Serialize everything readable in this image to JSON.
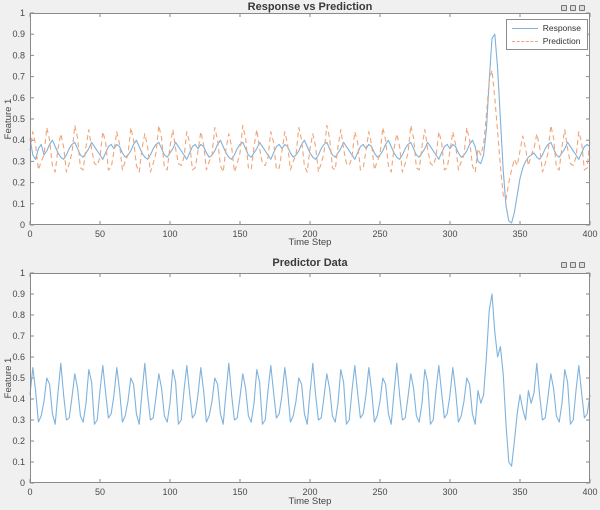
{
  "figure": {
    "background": "#f0f0f0",
    "plot_background": "#ffffff",
    "axis_color": "#8a8a8a",
    "tick_text_color": "#484848",
    "toolbar_icon": "ellipsis-icon"
  },
  "chart_data": [
    {
      "type": "line",
      "title": "Response vs Prediction",
      "xlabel": "Time Step",
      "ylabel": "Feature 1",
      "xlim": [
        0,
        400
      ],
      "ylim": [
        0,
        1
      ],
      "grid": false,
      "xticks": [
        0,
        50,
        100,
        150,
        200,
        250,
        300,
        350,
        400
      ],
      "xtick_labels": [
        "0",
        "50",
        "100",
        "150",
        "200",
        "250",
        "300",
        "350",
        "400"
      ],
      "yticks": [
        0,
        0.1,
        0.2,
        0.3,
        0.4,
        0.5,
        0.6,
        0.7,
        0.8,
        0.9,
        1
      ],
      "ytick_labels": [
        "0",
        "0.1",
        "0.2",
        "0.3",
        "0.4",
        "0.5",
        "0.6",
        "0.7",
        "0.8",
        "0.9",
        "1"
      ],
      "legend": {
        "position": "northeast",
        "entries": [
          "Response",
          "Prediction"
        ]
      },
      "x_start": 0,
      "x_step": 2,
      "series": [
        {
          "name": "Response",
          "color": "#7fb2dc",
          "style": "solid",
          "values": [
            0.41,
            0.33,
            0.31,
            0.36,
            0.38,
            0.33,
            0.35,
            0.38,
            0.4,
            0.37,
            0.34,
            0.32,
            0.31,
            0.33,
            0.36,
            0.38,
            0.39,
            0.36,
            0.33,
            0.32,
            0.34,
            0.36,
            0.39,
            0.37,
            0.35,
            0.33,
            0.31,
            0.34,
            0.37,
            0.38,
            0.36,
            0.38,
            0.37,
            0.34,
            0.32,
            0.33,
            0.35,
            0.38,
            0.4,
            0.37,
            0.34,
            0.32,
            0.31,
            0.33,
            0.36,
            0.38,
            0.39,
            0.36,
            0.33,
            0.32,
            0.34,
            0.36,
            0.39,
            0.37,
            0.35,
            0.33,
            0.31,
            0.34,
            0.37,
            0.38,
            0.36,
            0.38,
            0.37,
            0.34,
            0.32,
            0.33,
            0.35,
            0.38,
            0.4,
            0.37,
            0.34,
            0.32,
            0.31,
            0.33,
            0.36,
            0.38,
            0.39,
            0.36,
            0.33,
            0.32,
            0.34,
            0.36,
            0.39,
            0.37,
            0.35,
            0.33,
            0.31,
            0.34,
            0.37,
            0.38,
            0.36,
            0.38,
            0.37,
            0.34,
            0.32,
            0.33,
            0.35,
            0.38,
            0.4,
            0.37,
            0.34,
            0.32,
            0.31,
            0.33,
            0.36,
            0.38,
            0.39,
            0.36,
            0.33,
            0.32,
            0.34,
            0.36,
            0.39,
            0.37,
            0.35,
            0.33,
            0.31,
            0.34,
            0.37,
            0.38,
            0.36,
            0.38,
            0.37,
            0.34,
            0.32,
            0.33,
            0.35,
            0.38,
            0.4,
            0.37,
            0.34,
            0.32,
            0.31,
            0.33,
            0.36,
            0.38,
            0.39,
            0.36,
            0.33,
            0.32,
            0.34,
            0.36,
            0.39,
            0.37,
            0.35,
            0.33,
            0.31,
            0.34,
            0.37,
            0.38,
            0.36,
            0.38,
            0.37,
            0.34,
            0.32,
            0.33,
            0.35,
            0.38,
            0.4,
            0.37,
            0.3,
            0.29,
            0.33,
            0.45,
            0.68,
            0.88,
            0.9,
            0.74,
            0.5,
            0.26,
            0.09,
            0.02,
            0.01,
            0.06,
            0.14,
            0.22,
            0.27,
            0.3,
            0.32,
            0.33,
            0.34,
            0.32,
            0.31,
            0.33,
            0.36,
            0.38,
            0.39,
            0.36,
            0.33,
            0.32,
            0.34,
            0.36,
            0.39,
            0.37,
            0.35,
            0.33,
            0.31,
            0.34,
            0.37,
            0.38,
            0.37
          ]
        },
        {
          "name": "Prediction",
          "color": "#f0a478",
          "style": "dashed",
          "values": [
            0.35,
            0.44,
            0.38,
            0.26,
            0.3,
            0.33,
            0.46,
            0.4,
            0.28,
            0.25,
            0.36,
            0.43,
            0.37,
            0.25,
            0.29,
            0.34,
            0.47,
            0.41,
            0.27,
            0.26,
            0.37,
            0.45,
            0.36,
            0.29,
            0.28,
            0.32,
            0.44,
            0.39,
            0.26,
            0.27,
            0.35,
            0.44,
            0.38,
            0.26,
            0.3,
            0.33,
            0.46,
            0.4,
            0.28,
            0.25,
            0.36,
            0.43,
            0.37,
            0.25,
            0.29,
            0.34,
            0.47,
            0.41,
            0.27,
            0.26,
            0.37,
            0.45,
            0.36,
            0.29,
            0.28,
            0.32,
            0.44,
            0.39,
            0.26,
            0.27,
            0.35,
            0.44,
            0.38,
            0.26,
            0.3,
            0.33,
            0.46,
            0.4,
            0.28,
            0.25,
            0.36,
            0.43,
            0.37,
            0.25,
            0.29,
            0.34,
            0.47,
            0.41,
            0.27,
            0.26,
            0.37,
            0.45,
            0.36,
            0.29,
            0.28,
            0.32,
            0.44,
            0.39,
            0.26,
            0.27,
            0.35,
            0.44,
            0.38,
            0.26,
            0.3,
            0.33,
            0.46,
            0.4,
            0.28,
            0.25,
            0.36,
            0.43,
            0.37,
            0.25,
            0.29,
            0.34,
            0.47,
            0.41,
            0.27,
            0.26,
            0.37,
            0.45,
            0.36,
            0.29,
            0.28,
            0.32,
            0.44,
            0.39,
            0.26,
            0.27,
            0.35,
            0.44,
            0.38,
            0.26,
            0.3,
            0.33,
            0.46,
            0.4,
            0.28,
            0.25,
            0.36,
            0.43,
            0.37,
            0.25,
            0.29,
            0.34,
            0.47,
            0.41,
            0.27,
            0.26,
            0.37,
            0.45,
            0.36,
            0.29,
            0.28,
            0.32,
            0.44,
            0.39,
            0.26,
            0.27,
            0.35,
            0.44,
            0.38,
            0.26,
            0.3,
            0.33,
            0.46,
            0.4,
            0.28,
            0.25,
            0.36,
            0.33,
            0.38,
            0.52,
            0.68,
            0.73,
            0.6,
            0.44,
            0.28,
            0.14,
            0.12,
            0.2,
            0.26,
            0.31,
            0.28,
            0.35,
            0.42,
            0.36,
            0.28,
            0.33,
            0.36,
            0.43,
            0.37,
            0.25,
            0.29,
            0.34,
            0.47,
            0.41,
            0.27,
            0.26,
            0.37,
            0.45,
            0.36,
            0.29,
            0.28,
            0.32,
            0.44,
            0.39,
            0.26,
            0.27,
            0.4
          ]
        }
      ]
    },
    {
      "type": "line",
      "title": "Predictor Data",
      "xlabel": "Time Step",
      "ylabel": "Feature 1",
      "xlim": [
        0,
        400
      ],
      "ylim": [
        0,
        1
      ],
      "grid": false,
      "xticks": [
        0,
        50,
        100,
        150,
        200,
        250,
        300,
        350,
        400
      ],
      "xtick_labels": [
        "0",
        "50",
        "100",
        "150",
        "200",
        "250",
        "300",
        "350",
        "400"
      ],
      "yticks": [
        0,
        0.1,
        0.2,
        0.3,
        0.4,
        0.5,
        0.6,
        0.7,
        0.8,
        0.9,
        1
      ],
      "ytick_labels": [
        "0",
        "0.1",
        "0.2",
        "0.3",
        "0.4",
        "0.5",
        "0.6",
        "0.7",
        "0.8",
        "0.9",
        "1"
      ],
      "x_start": 0,
      "x_step": 2,
      "series": [
        {
          "name": "Predictor",
          "color": "#7fb2dc",
          "style": "solid",
          "values": [
            0.42,
            0.55,
            0.44,
            0.29,
            0.32,
            0.39,
            0.5,
            0.47,
            0.33,
            0.28,
            0.43,
            0.57,
            0.42,
            0.3,
            0.31,
            0.41,
            0.52,
            0.45,
            0.32,
            0.29,
            0.38,
            0.54,
            0.48,
            0.28,
            0.3,
            0.44,
            0.56,
            0.43,
            0.31,
            0.33,
            0.42,
            0.55,
            0.44,
            0.29,
            0.32,
            0.39,
            0.5,
            0.47,
            0.33,
            0.28,
            0.43,
            0.57,
            0.42,
            0.3,
            0.31,
            0.41,
            0.52,
            0.45,
            0.32,
            0.29,
            0.38,
            0.54,
            0.48,
            0.28,
            0.3,
            0.44,
            0.56,
            0.43,
            0.31,
            0.33,
            0.42,
            0.55,
            0.44,
            0.29,
            0.32,
            0.39,
            0.5,
            0.47,
            0.33,
            0.28,
            0.43,
            0.57,
            0.42,
            0.3,
            0.31,
            0.41,
            0.52,
            0.45,
            0.32,
            0.29,
            0.38,
            0.54,
            0.48,
            0.28,
            0.3,
            0.44,
            0.56,
            0.43,
            0.31,
            0.33,
            0.42,
            0.55,
            0.44,
            0.29,
            0.32,
            0.39,
            0.5,
            0.47,
            0.33,
            0.28,
            0.43,
            0.57,
            0.42,
            0.3,
            0.31,
            0.41,
            0.52,
            0.45,
            0.32,
            0.29,
            0.38,
            0.54,
            0.48,
            0.28,
            0.3,
            0.44,
            0.56,
            0.43,
            0.31,
            0.33,
            0.42,
            0.55,
            0.44,
            0.29,
            0.32,
            0.39,
            0.5,
            0.47,
            0.33,
            0.28,
            0.43,
            0.57,
            0.42,
            0.3,
            0.31,
            0.41,
            0.52,
            0.45,
            0.32,
            0.29,
            0.38,
            0.54,
            0.48,
            0.28,
            0.3,
            0.44,
            0.56,
            0.43,
            0.31,
            0.33,
            0.42,
            0.55,
            0.44,
            0.29,
            0.32,
            0.39,
            0.5,
            0.47,
            0.33,
            0.28,
            0.44,
            0.38,
            0.42,
            0.6,
            0.82,
            0.9,
            0.72,
            0.6,
            0.65,
            0.52,
            0.28,
            0.1,
            0.08,
            0.2,
            0.33,
            0.42,
            0.35,
            0.3,
            0.44,
            0.38,
            0.43,
            0.57,
            0.42,
            0.3,
            0.31,
            0.41,
            0.52,
            0.45,
            0.32,
            0.29,
            0.38,
            0.54,
            0.48,
            0.28,
            0.3,
            0.44,
            0.56,
            0.43,
            0.31,
            0.33,
            0.42
          ]
        }
      ]
    }
  ]
}
